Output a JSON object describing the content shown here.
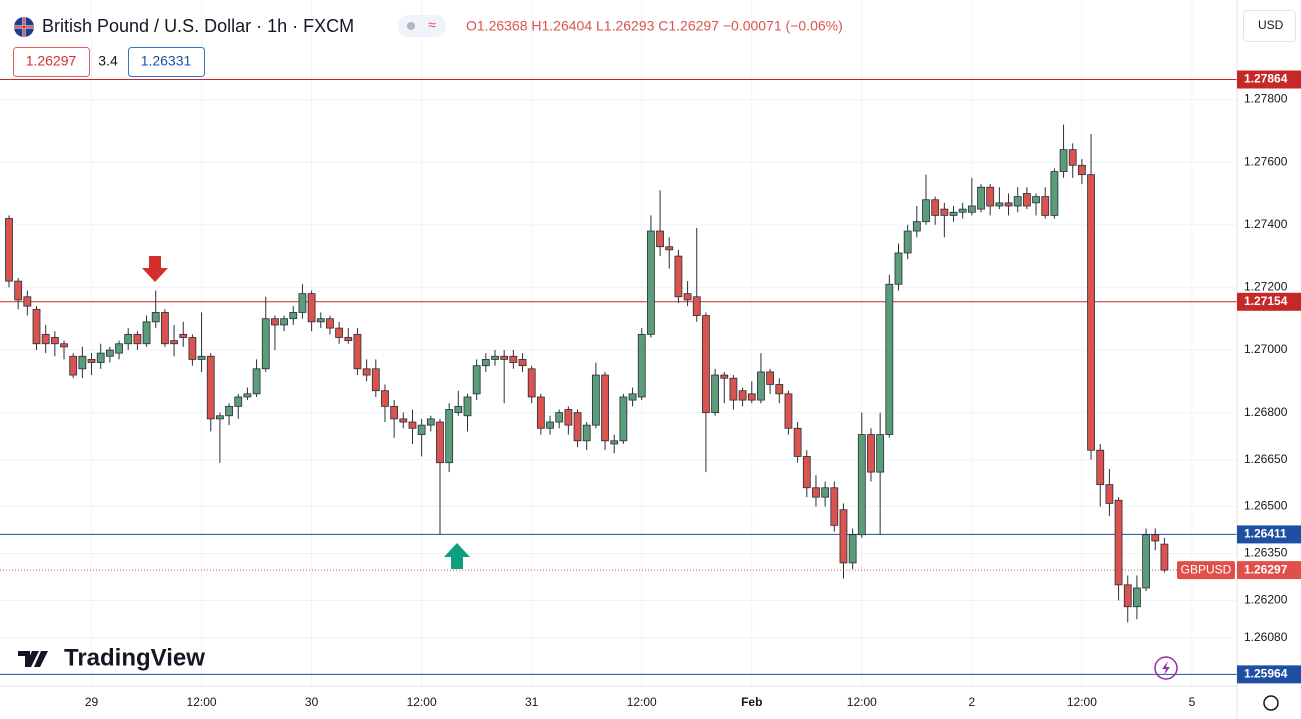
{
  "chart_data": {
    "type": "candlestick",
    "title": "British Pound / U.S. Dollar · 1h · FXCM",
    "ohlc_text": "O1.26368  H1.26404  L1.26293  C1.26297  −0.00071 (−0.06%)",
    "bid": "1.26297",
    "spread": "3.4",
    "ask": "1.26331",
    "currency": "USD",
    "logo": "TradingView",
    "up_color": "#5b9c79",
    "down_color": "#d9534f",
    "grid": true,
    "ylim": [
      1.2593,
      1.28102
    ],
    "yticks": [
      {
        "value": 1.278,
        "label": "1.27800"
      },
      {
        "value": 1.276,
        "label": "1.27600"
      },
      {
        "value": 1.274,
        "label": "1.27400"
      },
      {
        "value": 1.272,
        "label": "1.27200"
      },
      {
        "value": 1.27,
        "label": "1.27000"
      },
      {
        "value": 1.268,
        "label": "1.26800"
      },
      {
        "value": 1.2665,
        "label": "1.26650"
      },
      {
        "value": 1.265,
        "label": "1.26500"
      },
      {
        "value": 1.2635,
        "label": "1.26350"
      },
      {
        "value": 1.262,
        "label": "1.26200"
      },
      {
        "value": 1.2608,
        "label": "1.26080"
      }
    ],
    "hlines": [
      {
        "value": 1.27864,
        "label": "1.27864",
        "color": "#c62828"
      },
      {
        "value": 1.27154,
        "label": "1.27154",
        "color": "#c62828"
      },
      {
        "value": 1.26411,
        "label": "1.26411",
        "color": "#1e4fa3"
      },
      {
        "value": 1.25964,
        "label": "1.25964",
        "color": "#1e4fa3"
      }
    ],
    "last_price": {
      "value": 1.26297,
      "label": "1.26297",
      "symbol": "GBPUSD",
      "color": "#e0504a"
    },
    "categories": [
      null,
      null,
      null,
      null,
      null,
      null,
      null,
      null,
      null,
      "29",
      null,
      null,
      null,
      null,
      null,
      null,
      null,
      null,
      null,
      null,
      null,
      "12:00",
      null,
      null,
      null,
      null,
      null,
      null,
      null,
      null,
      null,
      null,
      null,
      "30",
      null,
      null,
      null,
      null,
      null,
      null,
      null,
      null,
      null,
      null,
      null,
      "12:00",
      null,
      null,
      null,
      null,
      null,
      null,
      null,
      null,
      null,
      null,
      null,
      "31",
      null,
      null,
      null,
      null,
      null,
      null,
      null,
      null,
      null,
      null,
      null,
      "12:00",
      null,
      null,
      null,
      null,
      null,
      null,
      null,
      null,
      null,
      null,
      null,
      "Feb",
      null,
      null,
      null,
      null,
      null,
      null,
      null,
      null,
      null,
      null,
      null,
      "12:00",
      null,
      null,
      null,
      null,
      null,
      null,
      null,
      null,
      null,
      null,
      null,
      "2",
      null,
      null,
      null,
      null,
      null,
      null,
      null,
      null,
      null,
      null,
      null,
      "12:00",
      null,
      null,
      null,
      null,
      null,
      null,
      null,
      null,
      null,
      null,
      null,
      "5"
    ],
    "candles": [
      {
        "o": 1.2742,
        "h": 1.2743,
        "l": 1.272,
        "c": 1.2722
      },
      {
        "o": 1.2722,
        "h": 1.2723,
        "l": 1.2713,
        "c": 1.2716
      },
      {
        "o": 1.2717,
        "h": 1.2719,
        "l": 1.2711,
        "c": 1.2714
      },
      {
        "o": 1.2713,
        "h": 1.2714,
        "l": 1.27,
        "c": 1.2702
      },
      {
        "o": 1.2705,
        "h": 1.2708,
        "l": 1.2699,
        "c": 1.2702
      },
      {
        "o": 1.2704,
        "h": 1.2706,
        "l": 1.2698,
        "c": 1.2702
      },
      {
        "o": 1.2702,
        "h": 1.2703,
        "l": 1.2697,
        "c": 1.2701
      },
      {
        "o": 1.2698,
        "h": 1.2699,
        "l": 1.2691,
        "c": 1.2692
      },
      {
        "o": 1.2694,
        "h": 1.2701,
        "l": 1.2691,
        "c": 1.2698
      },
      {
        "o": 1.2697,
        "h": 1.2699,
        "l": 1.2692,
        "c": 1.2696
      },
      {
        "o": 1.2696,
        "h": 1.2702,
        "l": 1.2694,
        "c": 1.2699
      },
      {
        "o": 1.2698,
        "h": 1.2701,
        "l": 1.2696,
        "c": 1.27
      },
      {
        "o": 1.2699,
        "h": 1.2703,
        "l": 1.2697,
        "c": 1.2702
      },
      {
        "o": 1.2702,
        "h": 1.2707,
        "l": 1.27,
        "c": 1.2705
      },
      {
        "o": 1.2705,
        "h": 1.2706,
        "l": 1.27,
        "c": 1.2702
      },
      {
        "o": 1.2702,
        "h": 1.2711,
        "l": 1.2701,
        "c": 1.2709
      },
      {
        "o": 1.2709,
        "h": 1.2719,
        "l": 1.2707,
        "c": 1.2712
      },
      {
        "o": 1.2712,
        "h": 1.2713,
        "l": 1.2701,
        "c": 1.2702
      },
      {
        "o": 1.2703,
        "h": 1.2708,
        "l": 1.2698,
        "c": 1.2702
      },
      {
        "o": 1.2705,
        "h": 1.2709,
        "l": 1.2701,
        "c": 1.2704
      },
      {
        "o": 1.2704,
        "h": 1.2705,
        "l": 1.2695,
        "c": 1.2697
      },
      {
        "o": 1.2697,
        "h": 1.2712,
        "l": 1.2693,
        "c": 1.2698
      },
      {
        "o": 1.2698,
        "h": 1.2699,
        "l": 1.2674,
        "c": 1.2678
      },
      {
        "o": 1.2678,
        "h": 1.268,
        "l": 1.2664,
        "c": 1.2679
      },
      {
        "o": 1.2679,
        "h": 1.2683,
        "l": 1.2676,
        "c": 1.2682
      },
      {
        "o": 1.2682,
        "h": 1.2686,
        "l": 1.2678,
        "c": 1.2685
      },
      {
        "o": 1.2685,
        "h": 1.2688,
        "l": 1.2684,
        "c": 1.2686
      },
      {
        "o": 1.2686,
        "h": 1.2697,
        "l": 1.2685,
        "c": 1.2694
      },
      {
        "o": 1.2694,
        "h": 1.2717,
        "l": 1.2693,
        "c": 1.271
      },
      {
        "o": 1.271,
        "h": 1.2711,
        "l": 1.27,
        "c": 1.2708
      },
      {
        "o": 1.2708,
        "h": 1.2711,
        "l": 1.2706,
        "c": 1.271
      },
      {
        "o": 1.271,
        "h": 1.2714,
        "l": 1.2708,
        "c": 1.2712
      },
      {
        "o": 1.2712,
        "h": 1.2721,
        "l": 1.271,
        "c": 1.2718
      },
      {
        "o": 1.2718,
        "h": 1.2719,
        "l": 1.2706,
        "c": 1.2709
      },
      {
        "o": 1.2709,
        "h": 1.2712,
        "l": 1.2707,
        "c": 1.271
      },
      {
        "o": 1.271,
        "h": 1.2711,
        "l": 1.2705,
        "c": 1.2707
      },
      {
        "o": 1.2707,
        "h": 1.2709,
        "l": 1.2702,
        "c": 1.2704
      },
      {
        "o": 1.2704,
        "h": 1.2707,
        "l": 1.2702,
        "c": 1.2703
      },
      {
        "o": 1.2705,
        "h": 1.2707,
        "l": 1.2692,
        "c": 1.2694
      },
      {
        "o": 1.2694,
        "h": 1.2697,
        "l": 1.269,
        "c": 1.2692
      },
      {
        "o": 1.2694,
        "h": 1.2697,
        "l": 1.2685,
        "c": 1.2687
      },
      {
        "o": 1.2687,
        "h": 1.2689,
        "l": 1.2677,
        "c": 1.2682
      },
      {
        "o": 1.2682,
        "h": 1.2684,
        "l": 1.2672,
        "c": 1.2678
      },
      {
        "o": 1.2678,
        "h": 1.268,
        "l": 1.2675,
        "c": 1.2677
      },
      {
        "o": 1.2677,
        "h": 1.2681,
        "l": 1.267,
        "c": 1.2675
      },
      {
        "o": 1.2673,
        "h": 1.2678,
        "l": 1.2666,
        "c": 1.2676
      },
      {
        "o": 1.2676,
        "h": 1.2679,
        "l": 1.2674,
        "c": 1.2678
      },
      {
        "o": 1.2677,
        "h": 1.2678,
        "l": 1.2641,
        "c": 1.2664
      },
      {
        "o": 1.2664,
        "h": 1.2683,
        "l": 1.2661,
        "c": 1.2681
      },
      {
        "o": 1.268,
        "h": 1.2687,
        "l": 1.2679,
        "c": 1.2682
      },
      {
        "o": 1.2679,
        "h": 1.2686,
        "l": 1.2674,
        "c": 1.2685
      },
      {
        "o": 1.2686,
        "h": 1.2697,
        "l": 1.2684,
        "c": 1.2695
      },
      {
        "o": 1.2695,
        "h": 1.2699,
        "l": 1.2693,
        "c": 1.2697
      },
      {
        "o": 1.2697,
        "h": 1.27,
        "l": 1.2695,
        "c": 1.2698
      },
      {
        "o": 1.2698,
        "h": 1.27,
        "l": 1.2683,
        "c": 1.2697
      },
      {
        "o": 1.2698,
        "h": 1.27,
        "l": 1.2694,
        "c": 1.2696
      },
      {
        "o": 1.2697,
        "h": 1.2699,
        "l": 1.2693,
        "c": 1.2695
      },
      {
        "o": 1.2694,
        "h": 1.2695,
        "l": 1.2683,
        "c": 1.2685
      },
      {
        "o": 1.2685,
        "h": 1.2686,
        "l": 1.2673,
        "c": 1.2675
      },
      {
        "o": 1.2675,
        "h": 1.2679,
        "l": 1.2673,
        "c": 1.2677
      },
      {
        "o": 1.2677,
        "h": 1.2681,
        "l": 1.2675,
        "c": 1.268
      },
      {
        "o": 1.2681,
        "h": 1.2682,
        "l": 1.2673,
        "c": 1.2676
      },
      {
        "o": 1.268,
        "h": 1.2681,
        "l": 1.2669,
        "c": 1.2671
      },
      {
        "o": 1.2671,
        "h": 1.2677,
        "l": 1.2668,
        "c": 1.2676
      },
      {
        "o": 1.2676,
        "h": 1.2696,
        "l": 1.2675,
        "c": 1.2692
      },
      {
        "o": 1.2692,
        "h": 1.2693,
        "l": 1.2668,
        "c": 1.2671
      },
      {
        "o": 1.267,
        "h": 1.2673,
        "l": 1.2667,
        "c": 1.2671
      },
      {
        "o": 1.2671,
        "h": 1.2686,
        "l": 1.267,
        "c": 1.2685
      },
      {
        "o": 1.2684,
        "h": 1.2688,
        "l": 1.2682,
        "c": 1.2686
      },
      {
        "o": 1.2685,
        "h": 1.2707,
        "l": 1.2684,
        "c": 1.2705
      },
      {
        "o": 1.2705,
        "h": 1.2743,
        "l": 1.2704,
        "c": 1.2738
      },
      {
        "o": 1.2738,
        "h": 1.2751,
        "l": 1.273,
        "c": 1.2733
      },
      {
        "o": 1.2733,
        "h": 1.2736,
        "l": 1.2726,
        "c": 1.2732
      },
      {
        "o": 1.273,
        "h": 1.2732,
        "l": 1.2715,
        "c": 1.2717
      },
      {
        "o": 1.2718,
        "h": 1.2722,
        "l": 1.2714,
        "c": 1.2716
      },
      {
        "o": 1.2717,
        "h": 1.2739,
        "l": 1.2709,
        "c": 1.2711
      },
      {
        "o": 1.2711,
        "h": 1.2712,
        "l": 1.2661,
        "c": 1.268
      },
      {
        "o": 1.268,
        "h": 1.2694,
        "l": 1.2679,
        "c": 1.2692
      },
      {
        "o": 1.2692,
        "h": 1.2693,
        "l": 1.2683,
        "c": 1.2691
      },
      {
        "o": 1.2691,
        "h": 1.2692,
        "l": 1.2681,
        "c": 1.2684
      },
      {
        "o": 1.2687,
        "h": 1.2688,
        "l": 1.2682,
        "c": 1.2684
      },
      {
        "o": 1.2686,
        "h": 1.269,
        "l": 1.2683,
        "c": 1.2684
      },
      {
        "o": 1.2684,
        "h": 1.2699,
        "l": 1.2683,
        "c": 1.2693
      },
      {
        "o": 1.2693,
        "h": 1.2694,
        "l": 1.2686,
        "c": 1.2689
      },
      {
        "o": 1.2689,
        "h": 1.2691,
        "l": 1.2683,
        "c": 1.2686
      },
      {
        "o": 1.2686,
        "h": 1.2687,
        "l": 1.2673,
        "c": 1.2675
      },
      {
        "o": 1.2675,
        "h": 1.2677,
        "l": 1.2664,
        "c": 1.2666
      },
      {
        "o": 1.2666,
        "h": 1.2668,
        "l": 1.2653,
        "c": 1.2656
      },
      {
        "o": 1.2656,
        "h": 1.266,
        "l": 1.265,
        "c": 1.2653
      },
      {
        "o": 1.2653,
        "h": 1.2658,
        "l": 1.265,
        "c": 1.2656
      },
      {
        "o": 1.2656,
        "h": 1.2658,
        "l": 1.2642,
        "c": 1.2644
      },
      {
        "o": 1.2649,
        "h": 1.2651,
        "l": 1.2627,
        "c": 1.2632
      },
      {
        "o": 1.2632,
        "h": 1.2643,
        "l": 1.263,
        "c": 1.2641
      },
      {
        "o": 1.2641,
        "h": 1.268,
        "l": 1.264,
        "c": 1.2673
      },
      {
        "o": 1.2673,
        "h": 1.2675,
        "l": 1.2658,
        "c": 1.2661
      },
      {
        "o": 1.2661,
        "h": 1.268,
        "l": 1.2641,
        "c": 1.2673
      },
      {
        "o": 1.2673,
        "h": 1.2724,
        "l": 1.2672,
        "c": 1.2721
      },
      {
        "o": 1.2721,
        "h": 1.2734,
        "l": 1.2719,
        "c": 1.2731
      },
      {
        "o": 1.2731,
        "h": 1.274,
        "l": 1.2729,
        "c": 1.2738
      },
      {
        "o": 1.2738,
        "h": 1.2746,
        "l": 1.2736,
        "c": 1.2741
      },
      {
        "o": 1.2741,
        "h": 1.2756,
        "l": 1.274,
        "c": 1.2748
      },
      {
        "o": 1.2748,
        "h": 1.2749,
        "l": 1.274,
        "c": 1.2743
      },
      {
        "o": 1.2745,
        "h": 1.2747,
        "l": 1.2736,
        "c": 1.2743
      },
      {
        "o": 1.2743,
        "h": 1.2746,
        "l": 1.2741,
        "c": 1.2744
      },
      {
        "o": 1.2744,
        "h": 1.2747,
        "l": 1.2742,
        "c": 1.2745
      },
      {
        "o": 1.2744,
        "h": 1.2755,
        "l": 1.2743,
        "c": 1.2746
      },
      {
        "o": 1.2745,
        "h": 1.2753,
        "l": 1.2744,
        "c": 1.2752
      },
      {
        "o": 1.2752,
        "h": 1.2753,
        "l": 1.2743,
        "c": 1.2746
      },
      {
        "o": 1.2746,
        "h": 1.2752,
        "l": 1.2745,
        "c": 1.2747
      },
      {
        "o": 1.2747,
        "h": 1.275,
        "l": 1.2743,
        "c": 1.2746
      },
      {
        "o": 1.2746,
        "h": 1.2752,
        "l": 1.2744,
        "c": 1.2749
      },
      {
        "o": 1.275,
        "h": 1.2752,
        "l": 1.2745,
        "c": 1.2746
      },
      {
        "o": 1.2747,
        "h": 1.275,
        "l": 1.2743,
        "c": 1.2749
      },
      {
        "o": 1.2749,
        "h": 1.2752,
        "l": 1.2742,
        "c": 1.2743
      },
      {
        "o": 1.2743,
        "h": 1.2758,
        "l": 1.2742,
        "c": 1.2757
      },
      {
        "o": 1.2757,
        "h": 1.2772,
        "l": 1.2755,
        "c": 1.2764
      },
      {
        "o": 1.2764,
        "h": 1.2766,
        "l": 1.2755,
        "c": 1.2759
      },
      {
        "o": 1.2759,
        "h": 1.2761,
        "l": 1.2753,
        "c": 1.2756
      },
      {
        "o": 1.2756,
        "h": 1.2769,
        "l": 1.2665,
        "c": 1.2668
      },
      {
        "o": 1.2668,
        "h": 1.267,
        "l": 1.265,
        "c": 1.2657
      },
      {
        "o": 1.2657,
        "h": 1.2662,
        "l": 1.2647,
        "c": 1.2651
      },
      {
        "o": 1.2652,
        "h": 1.2653,
        "l": 1.262,
        "c": 1.2625
      },
      {
        "o": 1.2625,
        "h": 1.2628,
        "l": 1.2613,
        "c": 1.2618
      },
      {
        "o": 1.2618,
        "h": 1.2628,
        "l": 1.2614,
        "c": 1.2624
      },
      {
        "o": 1.2624,
        "h": 1.2643,
        "l": 1.2623,
        "c": 1.2641
      },
      {
        "o": 1.2641,
        "h": 1.2643,
        "l": 1.2636,
        "c": 1.2639
      },
      {
        "o": 1.2638,
        "h": 1.264,
        "l": 1.2629,
        "c": 1.26297
      },
      null,
      null,
      null
    ]
  }
}
